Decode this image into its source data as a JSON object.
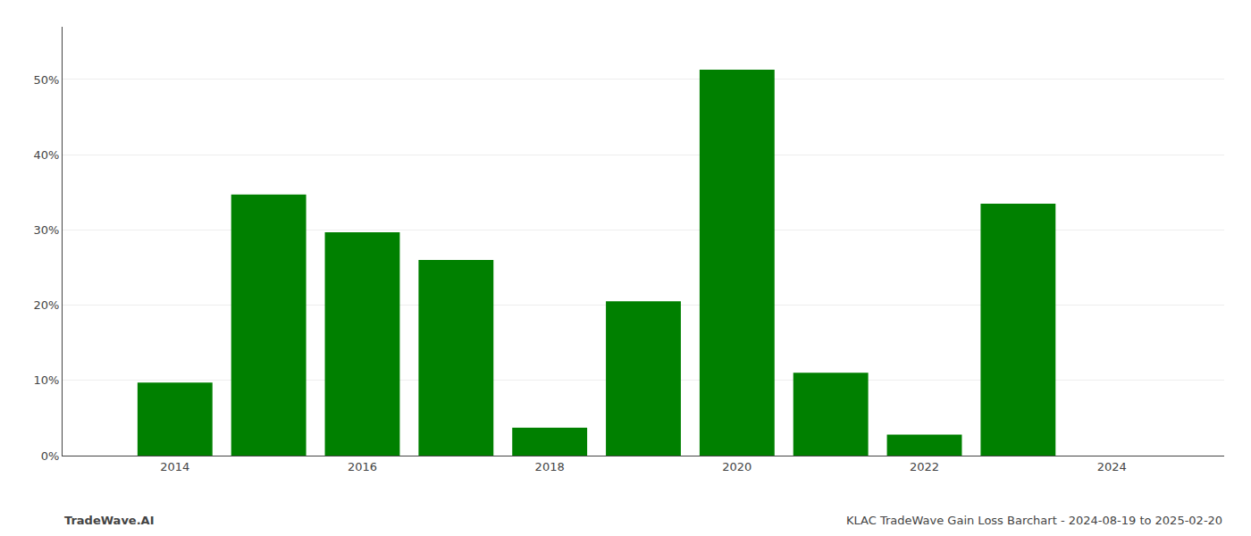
{
  "chart_data": {
    "type": "bar",
    "x": [
      2014,
      2015,
      2016,
      2017,
      2018,
      2019,
      2020,
      2021,
      2022,
      2023,
      2024
    ],
    "values": [
      9.7,
      34.7,
      29.7,
      26.0,
      3.7,
      20.5,
      51.3,
      11.0,
      2.8,
      33.5,
      0.0
    ],
    "color": "#008000",
    "xlim": [
      2012.8,
      2025.2
    ],
    "xticks": [
      2014,
      2016,
      2018,
      2020,
      2022,
      2024
    ],
    "ylim": [
      0,
      57
    ],
    "yticks": [
      {
        "value": 0,
        "label": "0%"
      },
      {
        "value": 10,
        "label": "10%"
      },
      {
        "value": 20,
        "label": "20%"
      },
      {
        "value": 30,
        "label": "30%"
      },
      {
        "value": 40,
        "label": "40%"
      },
      {
        "value": 50,
        "label": "50%"
      }
    ],
    "grid": true,
    "annotations": [
      "TradeWave.AI",
      "KLAC TradeWave Gain Loss Barchart - 2024-08-19 to 2025-02-20"
    ]
  }
}
